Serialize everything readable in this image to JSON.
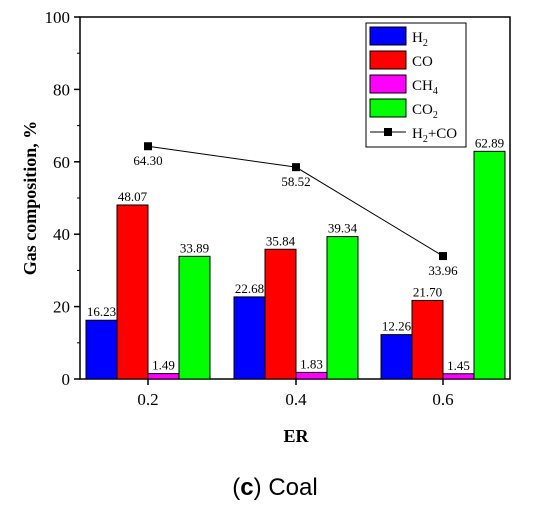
{
  "chart_data": {
    "type": "bar",
    "categories": [
      "0.2",
      "0.4",
      "0.6"
    ],
    "series": [
      {
        "name": "H2",
        "sub": "2",
        "base": "H",
        "color": "#0000ff",
        "values": [
          16.23,
          22.68,
          12.26
        ],
        "labels": [
          "16.23",
          "22.68",
          "12.26"
        ]
      },
      {
        "name": "CO",
        "color": "#ff0000",
        "values": [
          48.07,
          35.84,
          21.7
        ],
        "labels": [
          "48.07",
          "35.84",
          "21.70"
        ]
      },
      {
        "name": "CH4",
        "sub": "4",
        "base": "CH",
        "color": "#ff00ff",
        "values": [
          1.49,
          1.83,
          1.45
        ],
        "labels": [
          "1.49",
          "1.83",
          "1.45"
        ]
      },
      {
        "name": "CO2",
        "sub": "2",
        "base": "CO",
        "color": "#00ff00",
        "values": [
          33.89,
          39.34,
          62.89
        ],
        "labels": [
          "33.89",
          "39.34",
          "62.89"
        ]
      }
    ],
    "line_series": {
      "name": "H2+CO",
      "legend_parts": [
        "H",
        "2",
        "+CO"
      ],
      "type": "line",
      "color": "#000000",
      "values": [
        64.3,
        58.52,
        33.96
      ],
      "labels": [
        "64.30",
        "58.52",
        "33.96"
      ]
    },
    "xlabel": "ER",
    "ylabel": "Gas composition, %",
    "ylim": [
      0,
      100
    ],
    "yticks": [
      "0",
      "20",
      "40",
      "60",
      "80",
      "100"
    ],
    "legend_position": "top-right",
    "grid": false
  },
  "caption": {
    "letter": "c",
    "text": "Coal"
  }
}
